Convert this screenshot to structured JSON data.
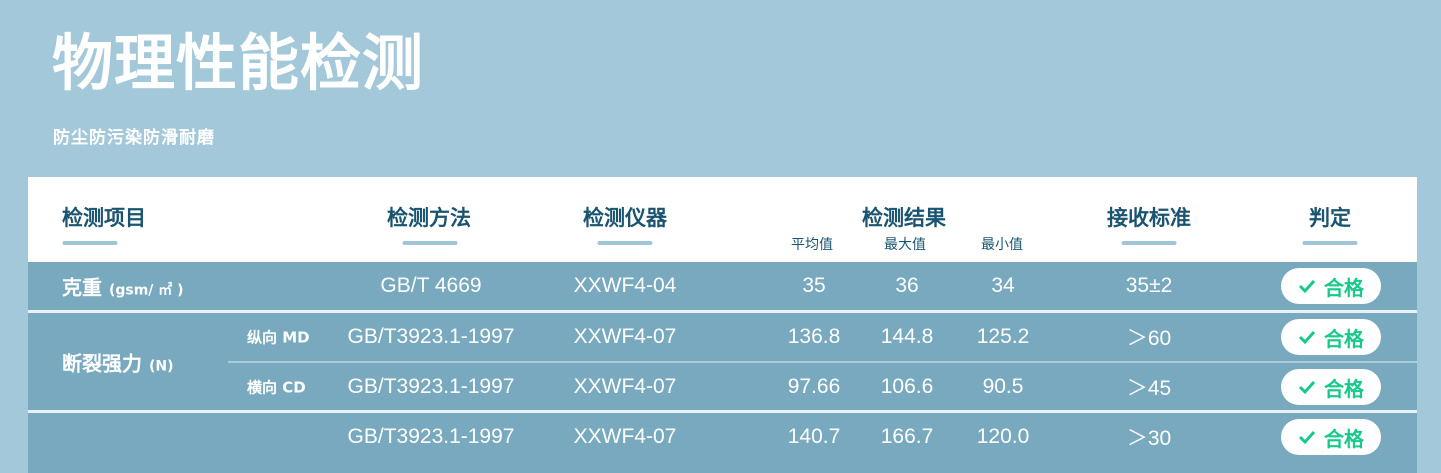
{
  "page": {
    "title": "物理性能检测",
    "subtitle": "防尘防污染防滑耐磨"
  },
  "colors": {
    "background": "#a3c8d9",
    "row": "#78a9be",
    "header_text": "#1a5470",
    "pass": "#17c98a"
  },
  "table": {
    "headers": {
      "item": "检测项目",
      "method": "检测方法",
      "instrument": "检测仪器",
      "result": "检测结果",
      "standard": "接收标准",
      "verdict": "判定"
    },
    "result_subheaders": [
      "平均值",
      "最大值",
      "最小值"
    ],
    "rows": [
      {
        "item": "克重",
        "unit": "(gsm/ ㎡ )",
        "direction": "",
        "method": "GB/T 4669",
        "instrument": "XXWF4-04",
        "avg": "35",
        "max": "36",
        "min": "34",
        "standard": "35±2",
        "verdict": "合格"
      },
      {
        "item": "断裂强力",
        "unit": "(N)",
        "direction": "纵向 MD",
        "method": "GB/T3923.1-1997",
        "instrument": "XXWF4-07",
        "avg": "136.8",
        "max": "144.8",
        "min": "125.2",
        "standard": "＞60",
        "verdict": "合格"
      },
      {
        "item": "",
        "unit": "",
        "direction": "横向 CD",
        "method": "GB/T3923.1-1997",
        "instrument": "XXWF4-07",
        "avg": "97.66",
        "max": "106.6",
        "min": "90.5",
        "standard": "＞45",
        "verdict": "合格"
      },
      {
        "item": "",
        "unit": "",
        "direction": "",
        "method": "GB/T3923.1-1997",
        "instrument": "XXWF4-07",
        "avg": "140.7",
        "max": "166.7",
        "min": "120.0",
        "standard": "＞30",
        "verdict": "合格"
      }
    ]
  }
}
